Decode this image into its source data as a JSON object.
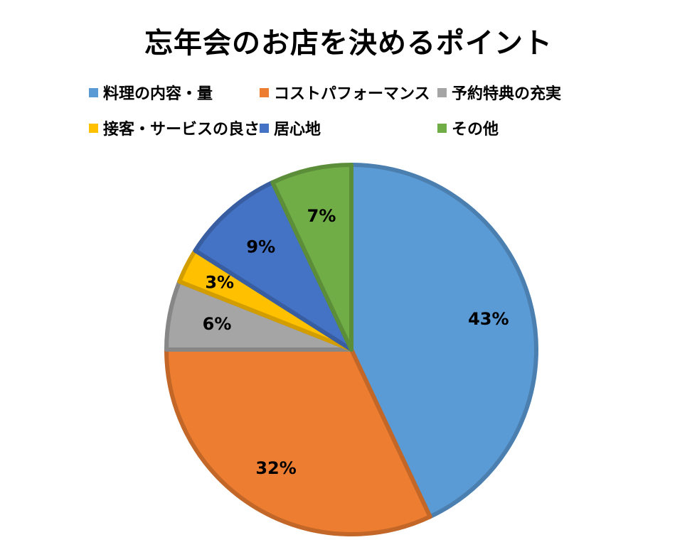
{
  "chart_data": {
    "type": "pie",
    "title": "忘年会のお店を決めるポイント",
    "legend_position": "top",
    "start_angle_deg": 0,
    "direction": "clockwise",
    "slices": [
      {
        "label": "料理の内容・量",
        "value": 43,
        "value_label": "43%",
        "color": "#5b9bd5"
      },
      {
        "label": "コストパフォーマンス",
        "value": 32,
        "value_label": "32%",
        "color": "#ed7d31"
      },
      {
        "label": "予約特典の充実",
        "value": 6,
        "value_label": "6%",
        "color": "#a5a5a5"
      },
      {
        "label": "接客・サービスの良さ",
        "value": 3,
        "value_label": "3%",
        "color": "#ffc000"
      },
      {
        "label": "居心地",
        "value": 9,
        "value_label": "9%",
        "color": "#4472c4"
      },
      {
        "label": "その他",
        "value": 7,
        "value_label": "7%",
        "color": "#70ad47"
      }
    ]
  }
}
